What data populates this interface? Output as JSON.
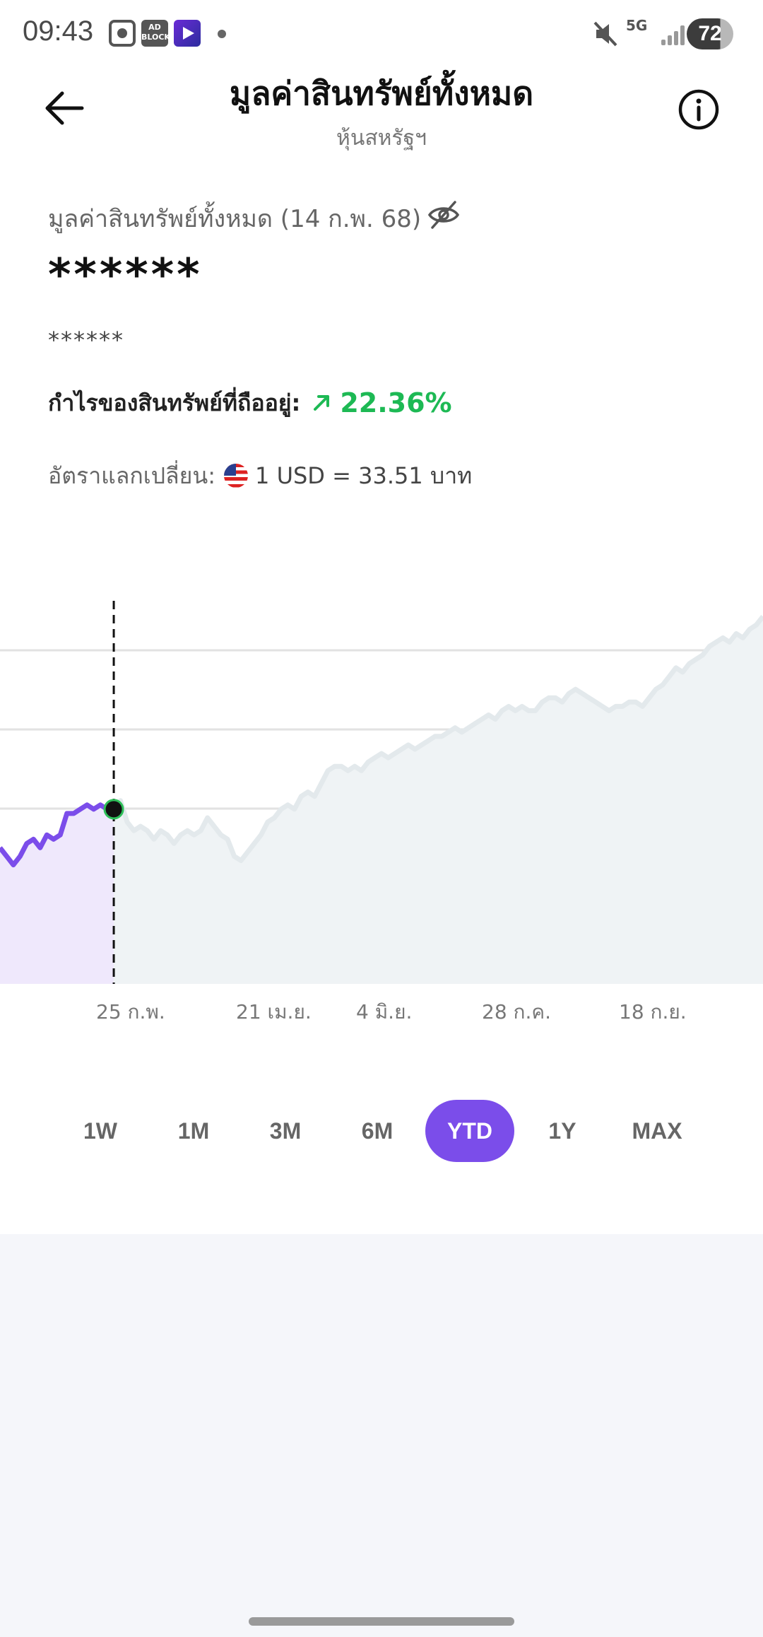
{
  "status_bar": {
    "time": "09:43",
    "network": "5G",
    "battery": "72",
    "adblock_label": "AD BLOCKER"
  },
  "header": {
    "title": "มูลค่าสินทรัพย์ทั้งหมด",
    "subtitle": "หุ้นสหรัฐฯ"
  },
  "summary": {
    "asset_label": "มูลค่าสินทรัพย์ทั้งหมด (14 ก.พ. 68)",
    "total_value": "******",
    "sub_value": "******",
    "profit_label": "กำไรของสินทรัพย์ที่ถืออยู่:",
    "profit_value": "22.36%",
    "fx_label": "อัตราแลกเปลี่ยน:",
    "fx_value": "1 USD = 33.51 บาท"
  },
  "colors": {
    "accent": "#7b4dea",
    "profit": "#1db954",
    "chart_future_line": "#e3e9ec",
    "chart_future_fill": "#eff3f5",
    "chart_past_fill": "#efe8fc"
  },
  "icons": {
    "back": "arrow-left-icon",
    "info": "info-circle-icon",
    "hide": "eye-off-icon",
    "profit": "arrow-up-right-icon",
    "flag": "us-flag-icon"
  },
  "chart_data": {
    "type": "area",
    "x_tick_labels": [
      "25 ก.พ.",
      "21 เม.ย.",
      "4 มิ.ย.",
      "28 ก.ค.",
      "18 ก.ย."
    ],
    "selected_index": 17,
    "grid": true,
    "values": [
      54,
      52,
      50,
      52,
      55,
      56,
      54,
      57,
      56,
      57,
      62,
      62,
      63,
      64,
      63,
      64,
      63,
      63,
      65,
      60,
      58,
      59,
      58,
      56,
      58,
      57,
      55,
      57,
      58,
      57,
      58,
      61,
      59,
      57,
      56,
      52,
      51,
      53,
      55,
      57,
      60,
      61,
      63,
      64,
      63,
      66,
      67,
      66,
      69,
      72,
      73,
      73,
      72,
      73,
      72,
      74,
      75,
      76,
      75,
      76,
      77,
      78,
      77,
      78,
      79,
      80,
      80,
      81,
      82,
      81,
      82,
      83,
      84,
      85,
      84,
      86,
      87,
      86,
      87,
      86,
      86,
      88,
      89,
      89,
      88,
      90,
      91,
      90,
      89,
      88,
      87,
      86,
      87,
      87,
      88,
      88,
      87,
      89,
      91,
      92,
      94,
      96,
      95,
      97,
      98,
      99,
      101,
      102,
      103,
      102,
      104,
      103,
      105,
      106,
      108
    ]
  },
  "range_tabs": [
    {
      "label": "1W",
      "active": false
    },
    {
      "label": "1M",
      "active": false
    },
    {
      "label": "3M",
      "active": false
    },
    {
      "label": "6M",
      "active": false
    },
    {
      "label": "YTD",
      "active": true
    },
    {
      "label": "1Y",
      "active": false
    },
    {
      "label": "MAX",
      "active": false
    }
  ]
}
